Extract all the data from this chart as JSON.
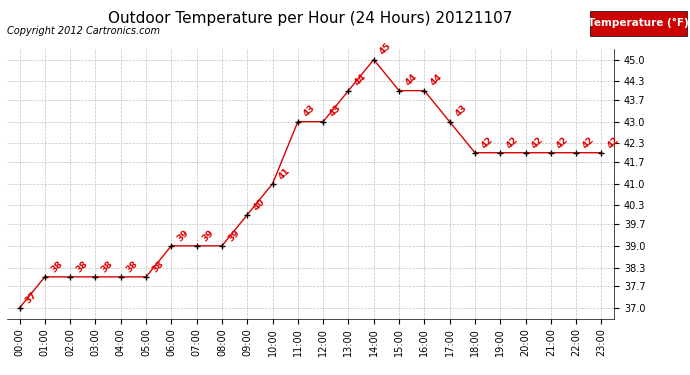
{
  "title": "Outdoor Temperature per Hour (24 Hours) 20121107",
  "copyright": "Copyright 2012 Cartronics.com",
  "legend_label": "Temperature (°F)",
  "hours": [
    0,
    1,
    2,
    3,
    4,
    5,
    6,
    7,
    8,
    9,
    10,
    11,
    12,
    13,
    14,
    15,
    16,
    17,
    18,
    19,
    20,
    21,
    22,
    23
  ],
  "temperatures": [
    37,
    38,
    38,
    38,
    38,
    38,
    39,
    39,
    39,
    40,
    41,
    43,
    43,
    44,
    45,
    44,
    44,
    43,
    42,
    42,
    42,
    42,
    42,
    42
  ],
  "hour_labels": [
    "00:00",
    "01:00",
    "02:00",
    "03:00",
    "04:00",
    "05:00",
    "06:00",
    "07:00",
    "08:00",
    "09:00",
    "10:00",
    "11:00",
    "12:00",
    "13:00",
    "14:00",
    "15:00",
    "16:00",
    "17:00",
    "18:00",
    "19:00",
    "20:00",
    "21:00",
    "22:00",
    "23:00"
  ],
  "yticks": [
    37.0,
    37.7,
    38.3,
    39.0,
    39.7,
    40.3,
    41.0,
    41.7,
    42.3,
    43.0,
    43.7,
    44.3,
    45.0
  ],
  "ylim": [
    36.65,
    45.35
  ],
  "xlim": [
    -0.5,
    23.5
  ],
  "line_color": "#dd0000",
  "marker_color": "black",
  "label_color": "#dd0000",
  "background_color": "white",
  "grid_color": "#bbbbbb",
  "title_fontsize": 11,
  "copyright_fontsize": 7,
  "label_fontsize": 6.5,
  "tick_fontsize": 7,
  "legend_bg": "#cc0000",
  "legend_fg": "white",
  "legend_fontsize": 7.5
}
